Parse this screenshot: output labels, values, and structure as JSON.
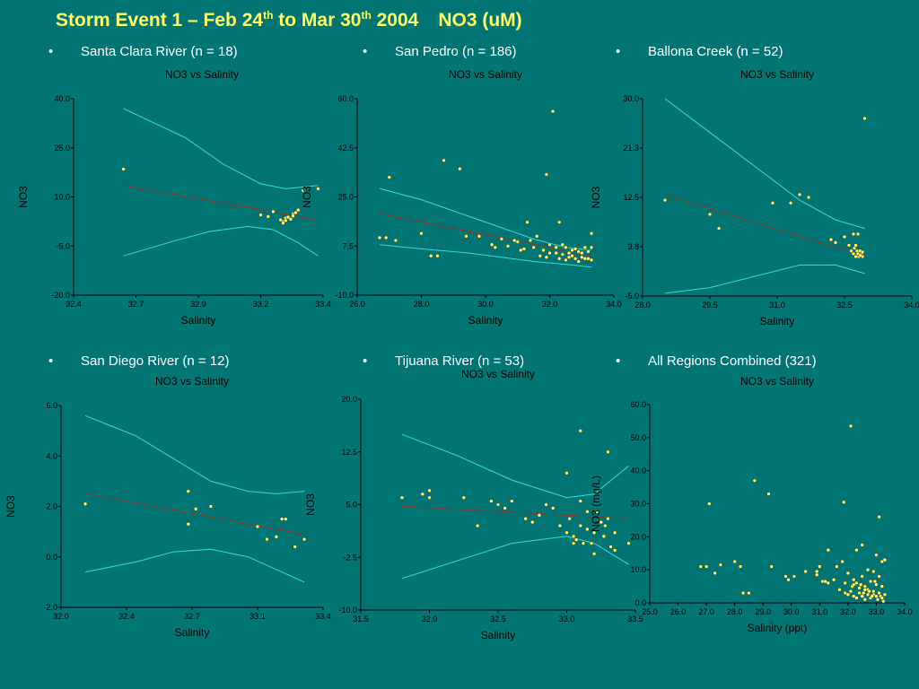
{
  "title": {
    "prefix": "Storm Event 1 – Feb 24",
    "sup1": "th",
    "middle": " to Mar 30",
    "sup2": "th",
    "year": " 2004",
    "param": "NO3 (uM)"
  },
  "colors": {
    "background": "#007573",
    "title": "#ffff66",
    "point_fill": "#ffff66",
    "regression": "#8a3a2a",
    "confidence": "#33dddd"
  },
  "bullet_symbol": "•",
  "chart_data": [
    {
      "type": "scatter",
      "heading": "Santa Clara River (n = 18)",
      "title": "NO3 vs Salinity",
      "xlabel": "Salinity",
      "ylabel": "NO3",
      "xlim": [
        32.4,
        33.4
      ],
      "ylim": [
        -20.0,
        40.0
      ],
      "xticks": [
        "32.4",
        "32.7",
        "32.9",
        "33.2",
        "33.4"
      ],
      "yticks": [
        "-20.0",
        "-5.0",
        "10.0",
        "25.0",
        "40.0"
      ],
      "grid": false,
      "points": [
        [
          32.6,
          18.5
        ],
        [
          33.15,
          4.5
        ],
        [
          33.18,
          4.0
        ],
        [
          33.2,
          5.5
        ],
        [
          33.23,
          3.0
        ],
        [
          33.24,
          2.5
        ],
        [
          33.25,
          3.5
        ],
        [
          33.26,
          4.0
        ],
        [
          33.27,
          3.2
        ],
        [
          33.28,
          4.8
        ],
        [
          33.29,
          5.2
        ],
        [
          33.3,
          6.0
        ],
        [
          33.32,
          12.0
        ],
        [
          33.38,
          12.5
        ],
        [
          33.24,
          2.0
        ],
        [
          33.25,
          2.8
        ],
        [
          33.26,
          3.8
        ],
        [
          33.28,
          4.2
        ]
      ],
      "regression": [
        [
          32.6,
          13.5
        ],
        [
          33.38,
          3.0
        ]
      ],
      "upper": [
        [
          32.6,
          37.0
        ],
        [
          32.85,
          28.0
        ],
        [
          33.0,
          20.0
        ],
        [
          33.15,
          14.0
        ],
        [
          33.25,
          12.5
        ],
        [
          33.38,
          13.5
        ]
      ],
      "lower": [
        [
          32.6,
          -8.0
        ],
        [
          32.8,
          -3.5
        ],
        [
          32.95,
          -0.5
        ],
        [
          33.1,
          1.0
        ],
        [
          33.2,
          0.0
        ],
        [
          33.3,
          -4.0
        ],
        [
          33.38,
          -8.0
        ]
      ]
    },
    {
      "type": "scatter",
      "heading": "San Pedro (n = 186)",
      "title": "NO3 vs Salinity",
      "xlabel": "Salinity",
      "ylabel": "NO3",
      "xlim": [
        26.0,
        34.0
      ],
      "ylim": [
        -10.0,
        60.0
      ],
      "xticks": [
        "26.0",
        "28.0",
        "30.0",
        "32.0",
        "34.0"
      ],
      "yticks": [
        "-10.0",
        "7.5",
        "25.0",
        "42.5",
        "60.0"
      ],
      "grid": false,
      "points": [
        [
          26.7,
          10.5
        ],
        [
          26.9,
          10.5
        ],
        [
          27.0,
          32.0
        ],
        [
          27.2,
          9.5
        ],
        [
          28.0,
          12.0
        ],
        [
          28.3,
          4.0
        ],
        [
          28.5,
          4.0
        ],
        [
          28.7,
          38.0
        ],
        [
          29.2,
          35.0
        ],
        [
          29.4,
          11.0
        ],
        [
          29.8,
          11.0
        ],
        [
          30.2,
          8.0
        ],
        [
          30.5,
          10.0
        ],
        [
          30.9,
          9.5
        ],
        [
          31.0,
          9.0
        ],
        [
          31.2,
          6.5
        ],
        [
          31.3,
          16.0
        ],
        [
          31.6,
          11.0
        ],
        [
          31.8,
          6.0
        ],
        [
          31.9,
          33.0
        ],
        [
          32.0,
          5.0
        ],
        [
          32.1,
          55.5
        ],
        [
          32.2,
          7.0
        ],
        [
          32.3,
          16.0
        ],
        [
          32.4,
          4.5
        ],
        [
          32.5,
          7.0
        ],
        [
          32.6,
          5.0
        ],
        [
          32.7,
          4.0
        ],
        [
          32.8,
          6.5
        ],
        [
          32.9,
          5.5
        ],
        [
          33.0,
          3.5
        ],
        [
          33.1,
          7.0
        ],
        [
          33.2,
          3.0
        ],
        [
          33.3,
          12.0
        ],
        [
          31.5,
          7.0
        ],
        [
          31.7,
          4.0
        ],
        [
          31.9,
          3.5
        ],
        [
          32.0,
          8.0
        ],
        [
          32.2,
          5.0
        ],
        [
          32.3,
          3.0
        ],
        [
          32.5,
          2.5
        ],
        [
          32.7,
          6.0
        ],
        [
          32.8,
          3.0
        ],
        [
          33.0,
          5.0
        ],
        [
          33.1,
          3.0
        ],
        [
          33.2,
          5.5
        ],
        [
          33.3,
          2.5
        ],
        [
          32.4,
          8.0
        ],
        [
          32.6,
          3.5
        ],
        [
          32.9,
          2.0
        ],
        [
          33.3,
          7.0
        ],
        [
          31.4,
          9.5
        ],
        [
          31.1,
          6.0
        ],
        [
          30.7,
          7.5
        ],
        [
          30.3,
          7.0
        ]
      ],
      "regression": [
        [
          26.7,
          19.0
        ],
        [
          33.3,
          4.0
        ]
      ],
      "upper": [
        [
          26.7,
          28.0
        ],
        [
          28.0,
          24.0
        ],
        [
          29.5,
          18.0
        ],
        [
          30.5,
          14.0
        ],
        [
          31.5,
          10.0
        ],
        [
          32.5,
          7.0
        ],
        [
          33.3,
          6.0
        ]
      ],
      "lower": [
        [
          26.7,
          8.0
        ],
        [
          28.0,
          6.5
        ],
        [
          29.5,
          5.0
        ],
        [
          30.5,
          3.5
        ],
        [
          31.5,
          2.0
        ],
        [
          32.5,
          1.0
        ],
        [
          33.3,
          0.0
        ]
      ]
    },
    {
      "type": "scatter",
      "heading": "Ballona Creek (n = 52)",
      "title": "NO3 vs Salinity",
      "xlabel": "Salinity",
      "ylabel": "NO3",
      "xlim": [
        28.0,
        34.0
      ],
      "ylim": [
        -5.0,
        30.0
      ],
      "xticks": [
        "28.0",
        "29.5",
        "31.0",
        "32.5",
        "34.0"
      ],
      "yticks": [
        "-5.0",
        "3.8",
        "12.5",
        "21.3",
        "30.0"
      ],
      "grid": false,
      "points": [
        [
          28.5,
          12.0
        ],
        [
          29.5,
          9.5
        ],
        [
          29.7,
          7.0
        ],
        [
          30.9,
          11.5
        ],
        [
          31.3,
          11.5
        ],
        [
          31.5,
          13.0
        ],
        [
          31.7,
          12.5
        ],
        [
          32.2,
          5.0
        ],
        [
          32.3,
          4.5
        ],
        [
          32.5,
          5.5
        ],
        [
          32.6,
          4.0
        ],
        [
          32.65,
          3.0
        ],
        [
          32.7,
          2.5
        ],
        [
          32.72,
          3.5
        ],
        [
          32.75,
          2.0
        ],
        [
          32.78,
          3.0
        ],
        [
          32.8,
          2.5
        ],
        [
          32.82,
          2.0
        ],
        [
          32.85,
          3.0
        ],
        [
          32.88,
          2.5
        ],
        [
          32.9,
          2.0
        ],
        [
          32.7,
          6.0
        ],
        [
          32.8,
          6.0
        ],
        [
          32.95,
          26.5
        ],
        [
          32.75,
          4.0
        ],
        [
          32.85,
          2.2
        ],
        [
          32.9,
          2.8
        ]
      ],
      "regression": [
        [
          28.5,
          13.0
        ],
        [
          32.95,
          2.0
        ]
      ],
      "upper": [
        [
          28.5,
          30.0
        ],
        [
          29.5,
          24.0
        ],
        [
          30.5,
          18.0
        ],
        [
          31.5,
          12.0
        ],
        [
          32.3,
          8.5
        ],
        [
          32.95,
          7.0
        ]
      ],
      "lower": [
        [
          28.5,
          -4.5
        ],
        [
          29.5,
          -3.5
        ],
        [
          30.5,
          -1.5
        ],
        [
          31.5,
          0.5
        ],
        [
          32.3,
          0.5
        ],
        [
          32.95,
          -1.0
        ]
      ]
    },
    {
      "type": "scatter",
      "heading": "San Diego River (n = 12)",
      "title": "NO3 vs Salinity",
      "xlabel": "Salinity",
      "ylabel": "NO3",
      "xlim": [
        32.0,
        33.4
      ],
      "ylim": [
        -2.0,
        6.0
      ],
      "xticks": [
        "32.0",
        "32.4",
        "32.7",
        "33.1",
        "33.4"
      ],
      "yticks": [
        "-2.0",
        "0.0",
        "2.0",
        "4.0",
        "6.0"
      ],
      "grid": false,
      "points": [
        [
          32.13,
          2.1
        ],
        [
          32.68,
          2.6
        ],
        [
          32.68,
          1.3
        ],
        [
          32.72,
          1.9
        ],
        [
          32.8,
          2.0
        ],
        [
          33.05,
          1.2
        ],
        [
          33.1,
          0.7
        ],
        [
          33.15,
          0.8
        ],
        [
          33.18,
          1.5
        ],
        [
          33.2,
          1.5
        ],
        [
          33.25,
          0.4
        ],
        [
          33.3,
          0.7
        ]
      ],
      "regression": [
        [
          32.13,
          2.5
        ],
        [
          33.3,
          0.9
        ]
      ],
      "upper": [
        [
          32.13,
          5.6
        ],
        [
          32.4,
          4.8
        ],
        [
          32.6,
          3.9
        ],
        [
          32.8,
          3.0
        ],
        [
          33.0,
          2.6
        ],
        [
          33.15,
          2.5
        ],
        [
          33.3,
          2.6
        ]
      ],
      "lower": [
        [
          32.13,
          -0.6
        ],
        [
          32.4,
          -0.2
        ],
        [
          32.6,
          0.2
        ],
        [
          32.8,
          0.3
        ],
        [
          33.0,
          0.0
        ],
        [
          33.15,
          -0.5
        ],
        [
          33.3,
          -1.0
        ]
      ]
    },
    {
      "type": "scatter",
      "heading": "Tijuana River (n = 53)",
      "title": "NO3 vs Salinity",
      "xlabel": "Salinity",
      "ylabel": "NO3",
      "xlim": [
        31.5,
        33.5
      ],
      "ylim": [
        -10.0,
        20.0
      ],
      "xticks": [
        "31.5",
        "32.0",
        "32.5",
        "33.0",
        "33.5"
      ],
      "yticks": [
        "-10.0",
        "-2.5",
        "5.0",
        "12.5",
        "20.0"
      ],
      "grid": false,
      "points": [
        [
          31.8,
          6.0
        ],
        [
          31.95,
          6.5
        ],
        [
          32.0,
          7.0
        ],
        [
          32.0,
          6.0
        ],
        [
          32.25,
          6.0
        ],
        [
          32.35,
          2.0
        ],
        [
          32.45,
          5.5
        ],
        [
          32.5,
          5.0
        ],
        [
          32.55,
          4.5
        ],
        [
          32.6,
          5.5
        ],
        [
          32.7,
          3.0
        ],
        [
          32.75,
          2.5
        ],
        [
          32.8,
          3.5
        ],
        [
          32.85,
          5.0
        ],
        [
          32.9,
          4.5
        ],
        [
          32.95,
          2.0
        ],
        [
          33.0,
          1.0
        ],
        [
          33.02,
          3.0
        ],
        [
          33.05,
          0.5
        ],
        [
          33.07,
          0.0
        ],
        [
          33.1,
          2.0
        ],
        [
          33.12,
          -0.5
        ],
        [
          33.15,
          1.5
        ],
        [
          33.18,
          -0.5
        ],
        [
          33.2,
          1.0
        ],
        [
          33.22,
          4.0
        ],
        [
          33.25,
          2.5
        ],
        [
          33.27,
          0.5
        ],
        [
          33.3,
          3.0
        ],
        [
          33.32,
          -1.0
        ],
        [
          33.35,
          1.0
        ],
        [
          33.1,
          5.5
        ],
        [
          33.0,
          9.5
        ],
        [
          33.1,
          15.5
        ],
        [
          33.3,
          12.5
        ],
        [
          33.35,
          -1.5
        ],
        [
          33.2,
          -2.0
        ],
        [
          33.15,
          4.0
        ],
        [
          33.05,
          -0.5
        ],
        [
          33.28,
          2.0
        ],
        [
          33.45,
          -0.5
        ]
      ],
      "regression": [
        [
          31.8,
          4.8
        ],
        [
          33.45,
          3.0
        ]
      ],
      "upper": [
        [
          31.8,
          15.0
        ],
        [
          32.2,
          12.0
        ],
        [
          32.6,
          8.5
        ],
        [
          33.0,
          6.0
        ],
        [
          33.2,
          6.5
        ],
        [
          33.45,
          10.5
        ]
      ],
      "lower": [
        [
          31.8,
          -5.5
        ],
        [
          32.2,
          -3.0
        ],
        [
          32.6,
          -0.5
        ],
        [
          33.0,
          0.5
        ],
        [
          33.2,
          -0.5
        ],
        [
          33.45,
          -3.5
        ]
      ]
    },
    {
      "type": "scatter",
      "heading": "All Regions Combined (321)",
      "title": "NO3 vs Salinity",
      "xlabel": "Salinity (ppt)",
      "ylabel": "NO3 (mg/L)",
      "xlim": [
        25.0,
        34.0
      ],
      "ylim": [
        0.0,
        60.0
      ],
      "xticks": [
        "25.0",
        "26.0",
        "27.0",
        "28.0",
        "29.0",
        "30.0",
        "31.0",
        "32.0",
        "33.0",
        "34.0"
      ],
      "yticks": [
        "0.0",
        "10.0",
        "20.0",
        "30.0",
        "40.0",
        "50.0",
        "60.0"
      ],
      "grid": false,
      "points": [
        [
          26.8,
          11.0
        ],
        [
          27.0,
          11.0
        ],
        [
          27.1,
          30.0
        ],
        [
          27.3,
          9.0
        ],
        [
          27.5,
          11.5
        ],
        [
          28.0,
          12.5
        ],
        [
          28.2,
          11.0
        ],
        [
          28.3,
          3.0
        ],
        [
          28.5,
          3.0
        ],
        [
          28.7,
          37.0
        ],
        [
          29.2,
          33.0
        ],
        [
          29.3,
          11.0
        ],
        [
          29.8,
          8.0
        ],
        [
          29.9,
          7.0
        ],
        [
          30.1,
          8.0
        ],
        [
          30.5,
          9.5
        ],
        [
          30.9,
          9.5
        ],
        [
          31.0,
          11.0
        ],
        [
          31.1,
          6.5
        ],
        [
          31.3,
          16.0
        ],
        [
          31.5,
          7.0
        ],
        [
          31.6,
          11.0
        ],
        [
          31.7,
          4.0
        ],
        [
          31.8,
          12.5
        ],
        [
          31.85,
          30.5
        ],
        [
          31.9,
          6.0
        ],
        [
          32.0,
          9.0
        ],
        [
          32.1,
          53.5
        ],
        [
          32.15,
          5.0
        ],
        [
          32.2,
          7.0
        ],
        [
          32.3,
          16.0
        ],
        [
          32.4,
          4.5
        ],
        [
          32.5,
          17.5
        ],
        [
          32.6,
          5.0
        ],
        [
          32.7,
          4.0
        ],
        [
          32.8,
          6.5
        ],
        [
          32.9,
          2.5
        ],
        [
          33.0,
          5.5
        ],
        [
          33.1,
          3.0
        ],
        [
          33.2,
          12.5
        ],
        [
          33.3,
          2.5
        ],
        [
          32.0,
          2.5
        ],
        [
          32.1,
          3.5
        ],
        [
          32.2,
          2.0
        ],
        [
          32.3,
          1.5
        ],
        [
          32.4,
          3.0
        ],
        [
          32.5,
          2.0
        ],
        [
          32.6,
          1.0
        ],
        [
          32.7,
          2.5
        ],
        [
          32.8,
          1.5
        ],
        [
          32.9,
          3.5
        ],
        [
          33.0,
          2.0
        ],
        [
          33.05,
          1.0
        ],
        [
          33.1,
          26.0
        ],
        [
          33.15,
          2.0
        ],
        [
          33.2,
          1.5
        ],
        [
          33.25,
          0.5
        ],
        [
          33.3,
          13.0
        ],
        [
          32.3,
          6.0
        ],
        [
          32.5,
          8.0
        ],
        [
          32.7,
          10.0
        ],
        [
          32.9,
          9.5
        ],
        [
          33.0,
          14.5
        ],
        [
          31.9,
          3.0
        ],
        [
          32.6,
          4.0
        ],
        [
          32.45,
          5.5
        ],
        [
          32.75,
          3.5
        ],
        [
          32.85,
          2.0
        ],
        [
          32.95,
          6.5
        ],
        [
          33.1,
          8.0
        ],
        [
          32.2,
          5.5
        ],
        [
          32.55,
          3.0
        ],
        [
          33.2,
          5.0
        ],
        [
          31.3,
          6.0
        ],
        [
          31.2,
          6.5
        ],
        [
          30.9,
          8.5
        ]
      ]
    }
  ]
}
